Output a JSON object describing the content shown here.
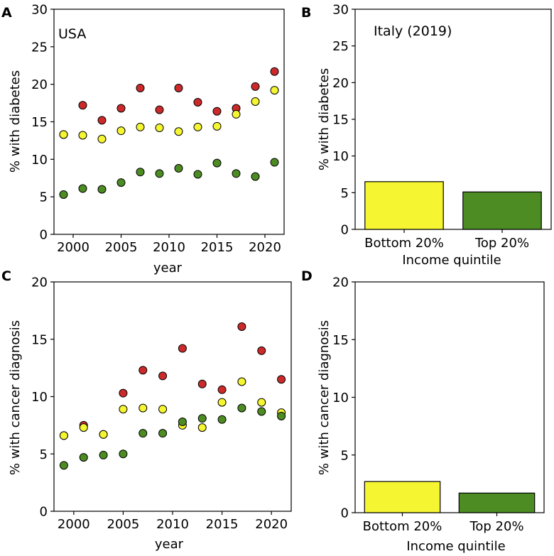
{
  "colors": {
    "red": "#cc2a2a",
    "yellow": "#f5f532",
    "green": "#4c8c22"
  },
  "chart_data": [
    {
      "panel": "A",
      "type": "scatter",
      "title": "USA",
      "xlabel": "year",
      "ylabel": "% with diabetes",
      "xlim": [
        1998,
        2022
      ],
      "ylim": [
        0,
        30
      ],
      "xticks": [
        2000,
        2005,
        2010,
        2015,
        2020
      ],
      "yticks": [
        0,
        5,
        10,
        15,
        20,
        25,
        30
      ],
      "x": [
        1999,
        2001,
        2003,
        2005,
        2007,
        2009,
        2011,
        2013,
        2015,
        2017,
        2019,
        2021
      ],
      "series": [
        {
          "name": "red",
          "color": "#cc2a2a",
          "values": [
            13.3,
            17.2,
            15.2,
            16.8,
            19.5,
            16.6,
            19.5,
            17.6,
            16.4,
            16.8,
            19.7,
            21.7
          ]
        },
        {
          "name": "yellow",
          "color": "#f5f532",
          "values": [
            13.3,
            13.2,
            12.7,
            13.8,
            14.3,
            14.2,
            13.7,
            14.3,
            14.4,
            16.0,
            17.7,
            19.2
          ]
        },
        {
          "name": "green",
          "color": "#4c8c22",
          "values": [
            5.3,
            6.1,
            6.0,
            6.9,
            8.3,
            8.1,
            8.8,
            8.0,
            9.5,
            8.1,
            7.7,
            9.6
          ]
        }
      ]
    },
    {
      "panel": "B",
      "type": "bar",
      "title": "Italy (2019)",
      "xlabel": "Income quintile",
      "ylabel": "% with diabetes",
      "ylim": [
        0,
        30
      ],
      "yticks": [
        0,
        5,
        10,
        15,
        20,
        25,
        30
      ],
      "categories": [
        "Bottom 20%",
        "Top 20%"
      ],
      "values": [
        6.5,
        5.1
      ],
      "bar_colors": [
        "#f5f532",
        "#4c8c22"
      ]
    },
    {
      "panel": "C",
      "type": "scatter",
      "title": "",
      "xlabel": "year",
      "ylabel": "% with cancer diagnosis",
      "xlim": [
        1998,
        2022
      ],
      "ylim": [
        0,
        20
      ],
      "xticks": [
        2000,
        2005,
        2010,
        2015,
        2020
      ],
      "yticks": [
        0,
        5,
        10,
        15,
        20
      ],
      "x": [
        1999,
        2001,
        2003,
        2005,
        2007,
        2009,
        2011,
        2013,
        2015,
        2017,
        2019,
        2021
      ],
      "series": [
        {
          "name": "red",
          "color": "#cc2a2a",
          "values": [
            6.6,
            7.5,
            6.7,
            10.3,
            12.3,
            11.8,
            14.2,
            11.1,
            10.6,
            16.1,
            14.0,
            11.5
          ]
        },
        {
          "name": "yellow",
          "color": "#f5f532",
          "values": [
            6.6,
            7.3,
            6.7,
            8.9,
            9.0,
            8.9,
            7.5,
            7.3,
            9.5,
            11.3,
            9.5,
            8.6
          ]
        },
        {
          "name": "green",
          "color": "#4c8c22",
          "values": [
            4.0,
            4.7,
            4.9,
            5.0,
            6.8,
            6.8,
            7.8,
            8.1,
            8.0,
            9.0,
            8.7,
            8.3
          ]
        }
      ]
    },
    {
      "panel": "D",
      "type": "bar",
      "title": "",
      "xlabel": "Income quintile",
      "ylabel": "% with cancer diagnosis",
      "ylim": [
        0,
        20
      ],
      "yticks": [
        0,
        5,
        10,
        15,
        20
      ],
      "categories": [
        "Bottom 20%",
        "Top 20%"
      ],
      "values": [
        2.7,
        1.7
      ],
      "bar_colors": [
        "#f5f532",
        "#4c8c22"
      ]
    }
  ]
}
